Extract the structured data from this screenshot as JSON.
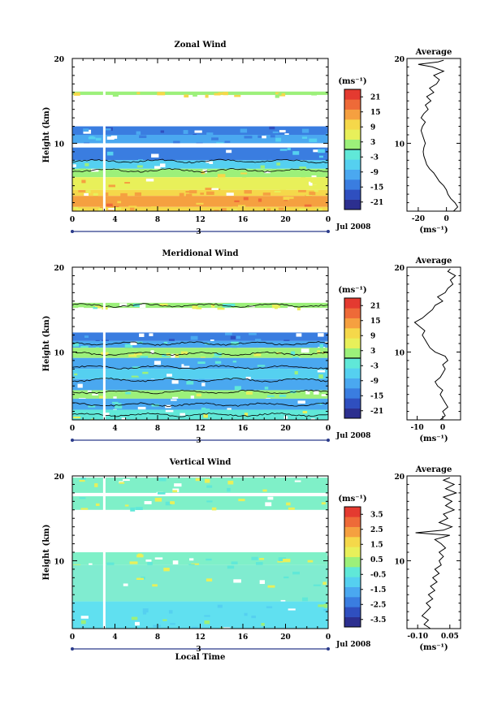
{
  "chart_data": [
    {
      "type": "heatmap",
      "title": "Zonal Wind",
      "ylabel": "Height (km)",
      "ylim": [
        2,
        20
      ],
      "yticks": [
        "20",
        "10"
      ],
      "xlim": [
        0,
        24
      ],
      "xticks": [
        "0",
        "4",
        "8",
        "12",
        "16",
        "20",
        "0"
      ],
      "date_bar_label": "3",
      "date_label": "Jul 2008",
      "colorbar": {
        "unit": "(ms⁻¹)",
        "ticks": [
          "21",
          "15",
          "9",
          "3",
          "-3",
          "-9",
          "-15",
          "-21"
        ],
        "range": [
          -24,
          24
        ],
        "zero_line": true,
        "colors": [
          "#2c2f8f",
          "#2f4fbf",
          "#3a7de0",
          "#4aa8f0",
          "#55d0f0",
          "#60e8d8",
          "#9cf07a",
          "#e8f05a",
          "#f5d84a",
          "#f5a040",
          "#ee6a38",
          "#e43a30"
        ]
      },
      "bands": [
        {
          "from": 15.7,
          "to": 16.1,
          "value": 5,
          "color": "#9cf07a"
        },
        {
          "from": 11.0,
          "to": 12.0,
          "value": -16,
          "color": "#3a7de0"
        },
        {
          "from": 10.0,
          "to": 11.0,
          "value": -10,
          "color": "#4aa8f0"
        },
        {
          "from": 9.5,
          "to": 10.0,
          "value": -2,
          "color": "#ffffff"
        },
        {
          "from": 8.0,
          "to": 9.5,
          "value": -12,
          "color": "#3a7de0"
        },
        {
          "from": 7.0,
          "to": 8.0,
          "value": -4,
          "color": "#55d0f0"
        },
        {
          "from": 6.0,
          "to": 7.0,
          "value": 6,
          "color": "#9cf07a"
        },
        {
          "from": 4.5,
          "to": 6.0,
          "value": 10,
          "color": "#e8f05a"
        },
        {
          "from": 3.8,
          "to": 4.5,
          "value": 12,
          "color": "#f5d84a"
        },
        {
          "from": 2.5,
          "to": 3.8,
          "value": 17,
          "color": "#f5a040"
        },
        {
          "from": 2.0,
          "to": 2.5,
          "value": 13,
          "color": "#f5d84a"
        }
      ],
      "contours": [
        6.8,
        7.9
      ],
      "gap_hour": 3,
      "average": {
        "title": "Average",
        "xlabel": "(ms⁻¹)",
        "xlim": [
          -28,
          10
        ],
        "xticks": [
          {
            "v": -20,
            "t": "-20"
          },
          {
            "v": 0,
            "t": "0"
          }
        ],
        "profile": [
          [
            2,
            5
          ],
          [
            2.5,
            8
          ],
          [
            3,
            6
          ],
          [
            3.5,
            3
          ],
          [
            4,
            1
          ],
          [
            4.5,
            0
          ],
          [
            5,
            -2
          ],
          [
            5.5,
            -5
          ],
          [
            6,
            -7
          ],
          [
            6.5,
            -9
          ],
          [
            7,
            -12
          ],
          [
            7.5,
            -14
          ],
          [
            8,
            -15
          ],
          [
            8.5,
            -16
          ],
          [
            9,
            -16.5
          ],
          [
            9.5,
            -16
          ],
          [
            10,
            -15
          ],
          [
            10.5,
            -16
          ],
          [
            11,
            -17
          ],
          [
            11.5,
            -18
          ],
          [
            12,
            -17
          ],
          [
            12.5,
            -15
          ],
          [
            13,
            -18
          ],
          [
            13.5,
            -16
          ],
          [
            14,
            -13
          ],
          [
            14.5,
            -15
          ],
          [
            15,
            -11
          ],
          [
            15.5,
            -14
          ],
          [
            16,
            -9
          ],
          [
            16.5,
            -12
          ],
          [
            17,
            -7
          ],
          [
            17.5,
            -5
          ],
          [
            18,
            -9
          ],
          [
            18.5,
            -2
          ],
          [
            19,
            -10
          ],
          [
            19.3,
            -20
          ],
          [
            19.6,
            -6
          ],
          [
            19.8,
            -2
          ]
        ]
      }
    },
    {
      "type": "heatmap",
      "title": "Meridional Wind",
      "ylabel": "Height (km)",
      "ylim": [
        2,
        20
      ],
      "yticks": [
        "20",
        "10"
      ],
      "xlim": [
        0,
        24
      ],
      "xticks": [
        "0",
        "4",
        "8",
        "12",
        "16",
        "20",
        "0"
      ],
      "date_bar_label": "3",
      "date_label": "Jul 2008",
      "colorbar": {
        "unit": "(ms⁻¹)",
        "ticks": [
          "21",
          "15",
          "9",
          "3",
          "-3",
          "-9",
          "-15",
          "-21"
        ],
        "range": [
          -24,
          24
        ],
        "zero_line": true,
        "colors": [
          "#2c2f8f",
          "#2f4fbf",
          "#3a7de0",
          "#4aa8f0",
          "#55d0f0",
          "#60e8d8",
          "#9cf07a",
          "#e8f05a",
          "#f5d84a",
          "#f5a040",
          "#ee6a38",
          "#e43a30"
        ]
      },
      "bands": [
        {
          "from": 15.2,
          "to": 15.8,
          "value": 4,
          "color": "#9cf07a"
        },
        {
          "from": 11.3,
          "to": 12.3,
          "value": -14,
          "color": "#3a7de0"
        },
        {
          "from": 10.5,
          "to": 11.3,
          "value": -6,
          "color": "#4aa8f0"
        },
        {
          "from": 9.3,
          "to": 10.5,
          "value": 2,
          "color": "#9cf07a"
        },
        {
          "from": 8.0,
          "to": 9.3,
          "value": -6,
          "color": "#4aa8f0"
        },
        {
          "from": 6.8,
          "to": 8.0,
          "value": -2,
          "color": "#55d0f0"
        },
        {
          "from": 5.5,
          "to": 6.8,
          "value": -8,
          "color": "#4aa8f0"
        },
        {
          "from": 4.5,
          "to": 5.5,
          "value": 2,
          "color": "#9cf07a"
        },
        {
          "from": 3.2,
          "to": 4.5,
          "value": -6,
          "color": "#4aa8f0"
        },
        {
          "from": 2.0,
          "to": 3.2,
          "value": 2,
          "color": "#60e8d8"
        }
      ],
      "contours": [
        15.5,
        11.0,
        9.8,
        8.2,
        6.7,
        5.3,
        3.8,
        2.6
      ],
      "gap_hour": 3,
      "average": {
        "title": "Average",
        "xlabel": "(ms⁻¹)",
        "xlim": [
          -14,
          7
        ],
        "xticks": [
          {
            "v": -10,
            "t": "-10"
          },
          {
            "v": 0,
            "t": "0"
          }
        ],
        "profile": [
          [
            2,
            -1
          ],
          [
            2.5,
            1
          ],
          [
            3,
            0
          ],
          [
            3.5,
            2
          ],
          [
            4,
            1
          ],
          [
            4.5,
            0
          ],
          [
            5,
            -1
          ],
          [
            5.5,
            0
          ],
          [
            6,
            -2
          ],
          [
            6.5,
            -3
          ],
          [
            7,
            -1
          ],
          [
            7.5,
            0
          ],
          [
            8,
            1
          ],
          [
            8.5,
            0
          ],
          [
            9,
            2
          ],
          [
            9.5,
            1
          ],
          [
            10,
            -3
          ],
          [
            10.5,
            -5
          ],
          [
            11,
            -6
          ],
          [
            11.5,
            -7
          ],
          [
            12,
            -8
          ],
          [
            12.5,
            -7
          ],
          [
            13,
            -9
          ],
          [
            13.5,
            -11
          ],
          [
            14,
            -8
          ],
          [
            14.5,
            -6
          ],
          [
            15,
            -4
          ],
          [
            15.5,
            -3
          ],
          [
            16,
            0
          ],
          [
            16.5,
            -2
          ],
          [
            17,
            1
          ],
          [
            17.5,
            2
          ],
          [
            18,
            4
          ],
          [
            18.5,
            3
          ],
          [
            19,
            5
          ],
          [
            19.5,
            2
          ],
          [
            19.8,
            3
          ]
        ]
      }
    },
    {
      "type": "heatmap",
      "title": "Vertical Wind",
      "ylabel": "Height (km)",
      "xlabel": "Local Time",
      "ylim": [
        2,
        20
      ],
      "yticks": [
        "20",
        "10"
      ],
      "xlim": [
        0,
        24
      ],
      "xticks": [
        "0",
        "4",
        "8",
        "12",
        "16",
        "20",
        "0"
      ],
      "date_bar_label": "3",
      "date_label": "Jul 2008",
      "colorbar": {
        "unit": "(ms⁻¹)",
        "ticks": [
          "3.5",
          "2.5",
          "1.5",
          "0.5",
          "-0.5",
          "-1.5",
          "-2.5",
          "-3.5"
        ],
        "range": [
          -4,
          4
        ],
        "zero_line": false,
        "colors": [
          "#2c2f8f",
          "#2f4fbf",
          "#3a7de0",
          "#4aa8f0",
          "#55d0f0",
          "#60e8d8",
          "#9cf07a",
          "#e8f05a",
          "#f5d84a",
          "#f5a040",
          "#ee6a38",
          "#e43a30"
        ]
      },
      "bands": [
        {
          "from": 18.0,
          "to": 19.8,
          "value": 0.2,
          "color": "#7ff0c8"
        },
        {
          "from": 16.0,
          "to": 17.6,
          "value": 0.1,
          "color": "#7ff0c8"
        },
        {
          "from": 11.0,
          "to": 14.0,
          "value": 0.0,
          "color": "#ffffff"
        },
        {
          "from": 9.5,
          "to": 11.0,
          "value": 0.1,
          "color": "#7ff0c8"
        },
        {
          "from": 5.2,
          "to": 9.5,
          "value": 0.0,
          "color": "#80ecd0"
        },
        {
          "from": 2.0,
          "to": 5.2,
          "value": -0.2,
          "color": "#60e0f0"
        }
      ],
      "contours": [],
      "gap_hour": 3,
      "average": {
        "title": "Average",
        "xlabel": "(ms⁻¹)",
        "xlim": [
          -0.15,
          0.1
        ],
        "xticks": [
          {
            "v": -0.1,
            "t": "-0.10"
          },
          {
            "v": 0.05,
            "t": "0.05"
          }
        ],
        "profile": [
          [
            2,
            -0.04
          ],
          [
            2.5,
            -0.07
          ],
          [
            3,
            -0.05
          ],
          [
            3.5,
            -0.08
          ],
          [
            4,
            -0.06
          ],
          [
            4.5,
            -0.04
          ],
          [
            5,
            -0.06
          ],
          [
            5.5,
            -0.03
          ],
          [
            6,
            -0.05
          ],
          [
            6.5,
            -0.02
          ],
          [
            7,
            -0.04
          ],
          [
            7.5,
            -0.01
          ],
          [
            8,
            -0.03
          ],
          [
            8.5,
            0.0
          ],
          [
            9,
            -0.02
          ],
          [
            9.5,
            0.01
          ],
          [
            10,
            0.0
          ],
          [
            10.5,
            0.02
          ],
          [
            11,
            0.0
          ],
          [
            11.5,
            0.03
          ],
          [
            12,
            0.01
          ],
          [
            12.5,
            -0.02
          ],
          [
            13,
            0.05
          ],
          [
            13.3,
            -0.11
          ],
          [
            13.6,
            0.02
          ],
          [
            14,
            0.06
          ],
          [
            14.5,
            0.0
          ],
          [
            15,
            0.04
          ],
          [
            15.5,
            0.02
          ],
          [
            16,
            0.07
          ],
          [
            16.5,
            0.03
          ],
          [
            17,
            0.06
          ],
          [
            17.5,
            0.02
          ],
          [
            18,
            0.08
          ],
          [
            18.5,
            0.03
          ],
          [
            19,
            0.07
          ],
          [
            19.5,
            0.02
          ],
          [
            19.8,
            0.05
          ]
        ]
      }
    }
  ]
}
